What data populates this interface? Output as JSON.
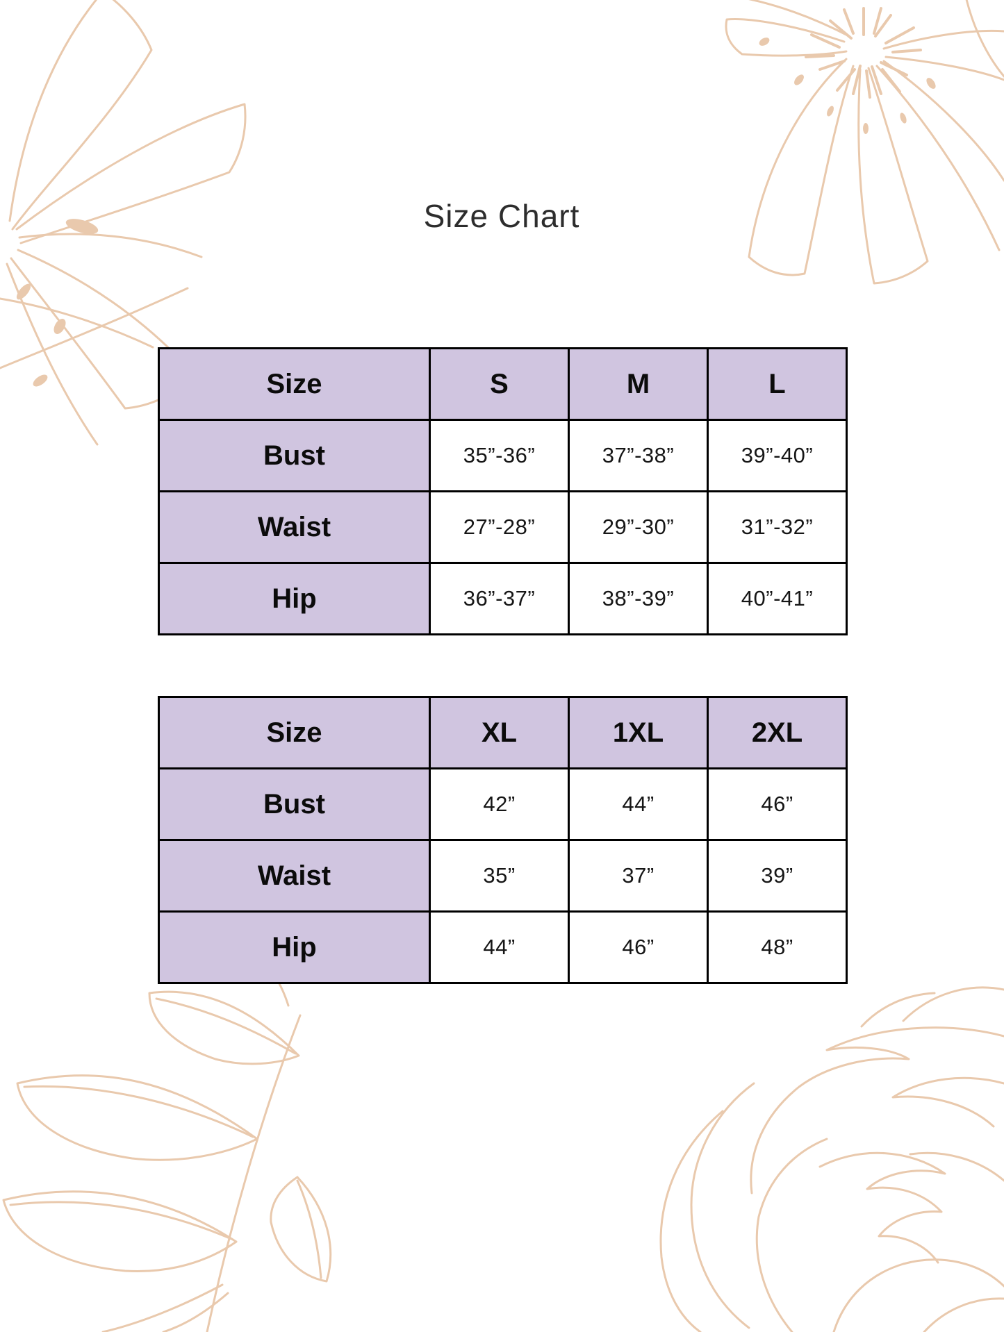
{
  "page": {
    "title": "Size Chart",
    "background_color": "#ffffff",
    "accent_color": "#d0c5e0",
    "grid_border_color": "#000000",
    "decoration_color": "#e9c9ad"
  },
  "tables": [
    {
      "name": "regular-sizes",
      "header": [
        "Size",
        "S",
        "M",
        "L"
      ],
      "rows": [
        {
          "label": "Bust",
          "values": [
            "35”-36”",
            "37”-38”",
            "39”-40”"
          ]
        },
        {
          "label": "Waist",
          "values": [
            "27”-28”",
            "29”-30”",
            "31”-32”"
          ]
        },
        {
          "label": "Hip",
          "values": [
            "36”-37”",
            "38”-39”",
            "40”-41”"
          ]
        }
      ]
    },
    {
      "name": "extended-sizes",
      "header": [
        "Size",
        "XL",
        "1XL",
        "2XL"
      ],
      "rows": [
        {
          "label": "Bust",
          "values": [
            "42”",
            "44”",
            "46”"
          ]
        },
        {
          "label": "Waist",
          "values": [
            "35”",
            "37”",
            "39”"
          ]
        },
        {
          "label": "Hip",
          "values": [
            "44”",
            "46”",
            "48”"
          ]
        }
      ]
    }
  ]
}
